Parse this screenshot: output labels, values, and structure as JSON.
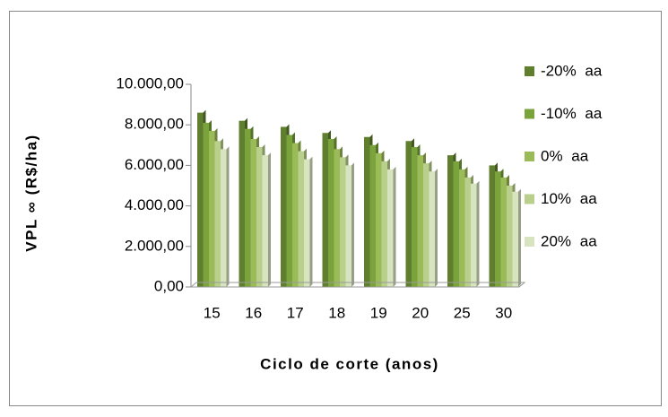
{
  "chart_data": {
    "type": "bar",
    "categories": [
      "15",
      "16",
      "17",
      "18",
      "19",
      "20",
      "25",
      "30"
    ],
    "series": [
      {
        "name": "-20% aa",
        "color": "#5f7f2e",
        "values": [
          8600,
          8200,
          7900,
          7600,
          7400,
          7200,
          6500,
          6000
        ]
      },
      {
        "name": "-10% aa",
        "color": "#7aa33c",
        "values": [
          8100,
          7800,
          7500,
          7300,
          7000,
          6900,
          6200,
          5700
        ]
      },
      {
        "name": "0% aa",
        "color": "#9bbb59",
        "values": [
          7700,
          7300,
          7100,
          6800,
          6600,
          6500,
          5800,
          5400
        ]
      },
      {
        "name": "10% aa",
        "color": "#b9d08c",
        "values": [
          7200,
          6900,
          6700,
          6400,
          6200,
          6100,
          5400,
          5000
        ]
      },
      {
        "name": "20% aa",
        "color": "#d7e4bf",
        "values": [
          6800,
          6500,
          6300,
          6000,
          5800,
          5700,
          5100,
          4700
        ]
      }
    ],
    "ylim": [
      0,
      10000
    ],
    "yticks": [
      {
        "value": 0,
        "label": "0,00"
      },
      {
        "value": 2000,
        "label": "2.000,00"
      },
      {
        "value": 4000,
        "label": "4.000,00"
      },
      {
        "value": 6000,
        "label": "6.000,00"
      },
      {
        "value": 8000,
        "label": "8.000,00"
      },
      {
        "value": 10000,
        "label": "10.000,00"
      }
    ],
    "xlabel": "Ciclo de corte (anos)",
    "ylabel": "VPL ∞ (R$/ha)",
    "legend": "right"
  }
}
